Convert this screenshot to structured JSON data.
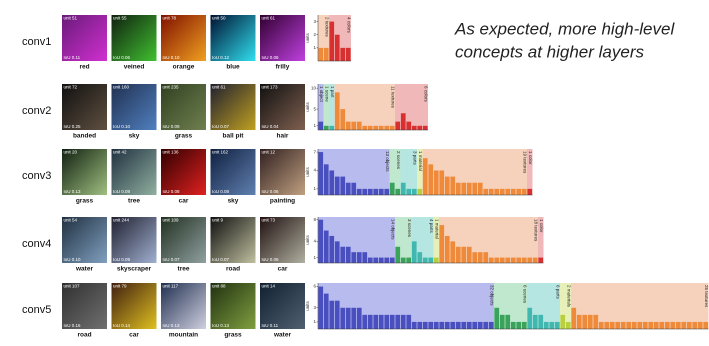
{
  "annotation": [
    "As expected, more high-level",
    "concepts at higher layers"
  ],
  "rows": [
    {
      "layer": "conv1",
      "units": [
        {
          "unit": "unit 51",
          "concept": "red",
          "iou": "IoU 0.11"
        },
        {
          "unit": "unit 55",
          "concept": "veined",
          "iou": "IoU 0.06"
        },
        {
          "unit": "unit 78",
          "concept": "orange",
          "iou": "IoU 0.10"
        },
        {
          "unit": "unit 50",
          "concept": "blue",
          "iou": "IoU 0.12"
        },
        {
          "unit": "unit 61",
          "concept": "frilly",
          "iou": "IoU 0.06"
        }
      ]
    },
    {
      "layer": "conv2",
      "units": [
        {
          "unit": "unit 72",
          "concept": "banded",
          "iou": "IoU 0.25"
        },
        {
          "unit": "unit 160",
          "concept": "sky",
          "iou": "IoU 0.10"
        },
        {
          "unit": "unit 235",
          "concept": "grass",
          "iou": "IoU 0.09"
        },
        {
          "unit": "unit 61",
          "concept": "ball pit",
          "iou": "IoU 0.07"
        },
        {
          "unit": "unit 173",
          "concept": "hair",
          "iou": "IoU 0.04"
        }
      ]
    },
    {
      "layer": "conv3",
      "units": [
        {
          "unit": "unit 20",
          "concept": "grass",
          "iou": "IoU 0.13"
        },
        {
          "unit": "unit 42",
          "concept": "tree",
          "iou": "IoU 0.09"
        },
        {
          "unit": "unit 136",
          "concept": "car",
          "iou": "IoU 0.08"
        },
        {
          "unit": "unit 162",
          "concept": "sky",
          "iou": "IoU 0.08"
        },
        {
          "unit": "unit 12",
          "concept": "painting",
          "iou": "IoU 0.06"
        }
      ]
    },
    {
      "layer": "conv4",
      "units": [
        {
          "unit": "unit 54",
          "concept": "water",
          "iou": "IoU 0.10"
        },
        {
          "unit": "unit 244",
          "concept": "skyscraper",
          "iou": "IoU 0.09"
        },
        {
          "unit": "unit 109",
          "concept": "tree",
          "iou": "IoU 0.07"
        },
        {
          "unit": "unit 9",
          "concept": "road",
          "iou": "IoU 0.07"
        },
        {
          "unit": "unit 73",
          "concept": "car",
          "iou": "IoU 0.06"
        }
      ]
    },
    {
      "layer": "conv5",
      "units": [
        {
          "unit": "unit 107",
          "concept": "road",
          "iou": "IoU 0.16"
        },
        {
          "unit": "unit 79",
          "concept": "car",
          "iou": "IoU 0.14"
        },
        {
          "unit": "unit 117",
          "concept": "mountain",
          "iou": "IoU 0.13"
        },
        {
          "unit": "unit 88",
          "concept": "grass",
          "iou": "IoU 0.13"
        },
        {
          "unit": "unit 14",
          "concept": "water",
          "iou": "IoU 0.11"
        }
      ]
    }
  ],
  "chart_data": [
    {
      "type": "bar",
      "y_label": "units",
      "ylim": [
        0,
        3.5
      ],
      "yticks": [
        1,
        2,
        3
      ],
      "series": [
        {
          "name": "2 textures",
          "color": "#ee8a3a",
          "band_color": "#f6d2bc",
          "values": [
            1,
            1
          ]
        },
        {
          "name": "4 colors",
          "color": "#d83030",
          "band_color": "#f0b8b8",
          "values": [
            3,
            2,
            1,
            1
          ]
        }
      ]
    },
    {
      "type": "bar",
      "y_label": "units",
      "ylim": [
        0,
        11
      ],
      "yticks": [
        1,
        5,
        10
      ],
      "series": [
        {
          "name": "1 object",
          "color": "#4a4fc0",
          "band_color": "#b8bbee",
          "values": [
            2
          ]
        },
        {
          "name": "1 scene",
          "color": "#3aa25a",
          "band_color": "#bfe8cf",
          "values": [
            1
          ]
        },
        {
          "name": "1 part",
          "color": "#40b8b0",
          "band_color": "#b6e6e2",
          "values": [
            1
          ]
        },
        {
          "name": "11 textures",
          "color": "#ee8a3a",
          "band_color": "#f6d2bc",
          "values": [
            9,
            5,
            2,
            2,
            2,
            1,
            1,
            1,
            1,
            1,
            1
          ]
        },
        {
          "name": "6 colors",
          "color": "#d83030",
          "band_color": "#f0b8b8",
          "values": [
            2,
            4,
            2,
            1,
            1,
            1
          ]
        }
      ]
    },
    {
      "type": "bar",
      "y_label": "units",
      "ylim": [
        0,
        7.5
      ],
      "yticks": [
        1,
        4,
        7
      ],
      "series": [
        {
          "name": "13 objects",
          "color": "#4a4fc0",
          "band_color": "#b8bbee",
          "values": [
            7,
            5,
            4,
            3,
            3,
            2,
            2,
            1,
            1,
            1,
            1,
            1,
            1
          ]
        },
        {
          "name": "2 scenes",
          "color": "#3aa25a",
          "band_color": "#bfe8cf",
          "values": [
            2,
            1
          ]
        },
        {
          "name": "3 parts",
          "color": "#40b8b0",
          "band_color": "#b6e6e2",
          "values": [
            2,
            1,
            1
          ]
        },
        {
          "name": "1 material",
          "color": "#b8d040",
          "band_color": "#e6f0b8",
          "values": [
            1
          ]
        },
        {
          "name": "19 textures",
          "color": "#ee8a3a",
          "band_color": "#f6d2bc",
          "values": [
            6,
            5,
            4,
            4,
            3,
            3,
            2,
            2,
            2,
            2,
            2,
            1,
            1,
            1,
            1,
            1,
            1,
            1,
            1
          ]
        },
        {
          "name": "1 color",
          "color": "#d83030",
          "band_color": "#f0b8b8",
          "values": [
            1
          ]
        }
      ]
    },
    {
      "type": "bar",
      "y_label": "units",
      "ylim": [
        0,
        8.5
      ],
      "yticks": [
        1,
        4,
        8
      ],
      "series": [
        {
          "name": "14 objects",
          "color": "#4a4fc0",
          "band_color": "#b8bbee",
          "values": [
            8,
            6,
            5,
            4,
            3,
            3,
            2,
            2,
            2,
            1,
            1,
            1,
            1,
            1
          ]
        },
        {
          "name": "3 scenes",
          "color": "#3aa25a",
          "band_color": "#bfe8cf",
          "values": [
            3,
            1,
            1
          ]
        },
        {
          "name": "4 parts",
          "color": "#40b8b0",
          "band_color": "#b6e6e2",
          "values": [
            4,
            2,
            1,
            1
          ]
        },
        {
          "name": "1 material",
          "color": "#b8d040",
          "band_color": "#e6f0b8",
          "values": [
            1
          ]
        },
        {
          "name": "18 textures",
          "color": "#ee8a3a",
          "band_color": "#f6d2bc",
          "values": [
            7,
            5,
            4,
            3,
            3,
            3,
            2,
            2,
            2,
            1,
            1,
            1,
            1,
            1,
            1,
            1,
            1,
            1
          ]
        },
        {
          "name": "1 color",
          "color": "#d83030",
          "band_color": "#f0b8b8",
          "values": [
            1
          ]
        }
      ]
    },
    {
      "type": "bar",
      "y_label": "units",
      "ylim": [
        0,
        6.5
      ],
      "yticks": [
        1,
        3,
        6
      ],
      "series": [
        {
          "name": "32 objects",
          "color": "#4a4fc0",
          "band_color": "#b8bbee",
          "values": [
            6,
            5,
            4,
            4,
            3,
            3,
            3,
            3,
            2,
            2,
            2,
            2,
            2,
            2,
            2,
            2,
            2,
            1,
            1,
            1,
            1,
            1,
            1,
            1,
            1,
            1,
            1,
            1,
            1,
            1,
            1,
            1
          ]
        },
        {
          "name": "6 scenes",
          "color": "#3aa25a",
          "band_color": "#bfe8cf",
          "values": [
            3,
            2,
            2,
            1,
            1,
            1
          ]
        },
        {
          "name": "6 parts",
          "color": "#40b8b0",
          "band_color": "#b6e6e2",
          "values": [
            3,
            2,
            2,
            1,
            1,
            1
          ]
        },
        {
          "name": "2 materials",
          "color": "#b8d040",
          "band_color": "#e6f0b8",
          "values": [
            2,
            1
          ]
        },
        {
          "name": "25 textures",
          "color": "#ee8a3a",
          "band_color": "#f6d2bc",
          "values": [
            3,
            2,
            2,
            2,
            2,
            1,
            1,
            1,
            1,
            1,
            1,
            1,
            1,
            1,
            1,
            1,
            1,
            1,
            1,
            1,
            1,
            1,
            1,
            1,
            1
          ]
        }
      ]
    }
  ]
}
